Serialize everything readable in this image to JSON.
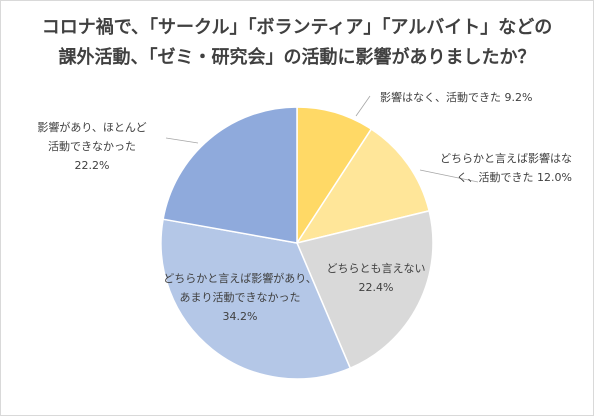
{
  "chart_data": {
    "type": "pie",
    "title_lines": [
      "コロナ禍で、「サークル」「ボランティア」「アルバイト」などの",
      "課外活動、「ゼミ・研究会」の活動に影響がありましたか？"
    ],
    "start_angle_deg": 0,
    "direction": "clockwise",
    "slices": [
      {
        "label_lines": [
          "影響はなく、活動できた 9.2%"
        ],
        "value": 9.2,
        "color": "#ffd966"
      },
      {
        "label_lines": [
          "どちらかと言えば影響はな",
          "く、活動できた 12.0%"
        ],
        "value": 12.0,
        "color": "#ffe699"
      },
      {
        "label_lines": [
          "どちらとも言えない",
          "22.4%"
        ],
        "value": 22.4,
        "color": "#d9d9d9"
      },
      {
        "label_lines": [
          "どちらかと言えば影響があり、",
          "あまり活動できなかった",
          "34.2%"
        ],
        "value": 34.2,
        "color": "#b4c7e7"
      },
      {
        "label_lines": [
          "影響があり、ほとんど",
          "活動できなかった",
          "22.2%"
        ],
        "value": 22.2,
        "color": "#8faadc"
      }
    ]
  }
}
